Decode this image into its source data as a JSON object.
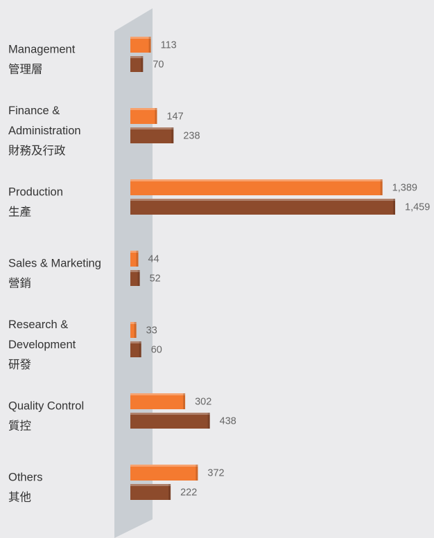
{
  "chart_data": {
    "type": "bar",
    "categories": [
      [
        "Management",
        "管理層"
      ],
      [
        "Finance &",
        "Administration",
        "財務及行政"
      ],
      [
        "Production",
        "生產"
      ],
      [
        "Sales & Marketing",
        "營銷"
      ],
      [
        "Research &",
        "Development",
        "研發"
      ],
      [
        "Quality Control",
        "質控"
      ],
      [
        "Others",
        "其他"
      ]
    ],
    "series": [
      {
        "color": "#f47a30",
        "values": [
          113,
          147,
          1389,
          44,
          33,
          302,
          372
        ],
        "value_labels": [
          "113",
          "147",
          "1,389",
          "44",
          "33",
          "302",
          "372"
        ]
      },
      {
        "color": "#8d4b2c",
        "values": [
          70,
          238,
          1459,
          52,
          60,
          438,
          222
        ],
        "value_labels": [
          "70",
          "238",
          "1,459",
          "52",
          "60",
          "438",
          "222"
        ]
      }
    ]
  }
}
